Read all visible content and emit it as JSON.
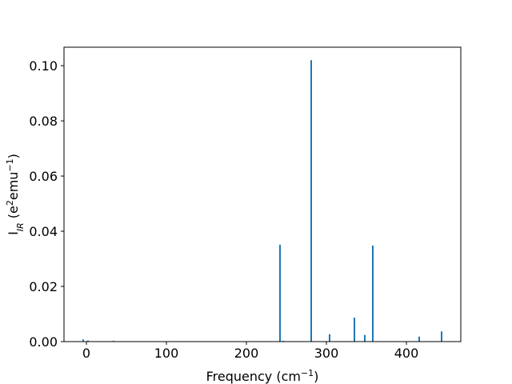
{
  "chart_data": {
    "type": "bar",
    "xlabel": [
      {
        "text": "Frequency (cm"
      },
      {
        "text": "−1",
        "sup": true
      },
      {
        "text": ")"
      }
    ],
    "ylabel": [
      {
        "text": "I"
      },
      {
        "text": "IR",
        "sub": true
      },
      {
        "text": " (e"
      },
      {
        "text": "2",
        "sup": true
      },
      {
        "text": "emu"
      },
      {
        "text": "−1",
        "sup": true
      },
      {
        "text": ")"
      }
    ],
    "x": [
      -4,
      2,
      34,
      242,
      246,
      281,
      304,
      335,
      348,
      358,
      416,
      444
    ],
    "values": [
      0.0008,
      0.0004,
      0.0003,
      0.0351,
      0.0003,
      0.102,
      0.0027,
      0.0087,
      0.0024,
      0.0348,
      0.0018,
      0.0037
    ],
    "color": "#1f77b4",
    "xlim": [
      -28,
      468
    ],
    "xticks": [
      0,
      100,
      200,
      300,
      400
    ],
    "ylim": [
      0,
      0.1067
    ],
    "yticks": [
      {
        "value": 0,
        "label": "0.00"
      },
      {
        "value": 0.02,
        "label": "0.02"
      },
      {
        "value": 0.04,
        "label": "0.04"
      },
      {
        "value": 0.06,
        "label": "0.06"
      },
      {
        "value": 0.08,
        "label": "0.08"
      },
      {
        "value": 0.1,
        "label": "0.10"
      }
    ]
  }
}
